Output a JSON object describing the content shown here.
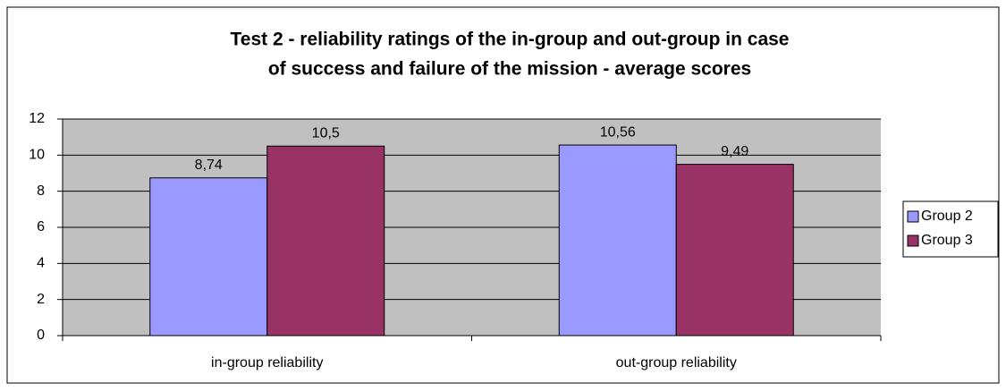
{
  "chart_data": {
    "type": "bar",
    "title": [
      "Test 2 - reliability ratings of the in-group and out-group in case",
      "of success and failure  of the mission - average scores"
    ],
    "categories": [
      "in-group reliability",
      "out-group reliability"
    ],
    "series": [
      {
        "name": "Group 2",
        "color": "#9999ff",
        "values": [
          8.74,
          10.56
        ],
        "value_labels": [
          "8,74",
          "10,56"
        ]
      },
      {
        "name": "Group 3",
        "color": "#993366",
        "values": [
          10.5,
          9.49
        ],
        "value_labels": [
          "10,5",
          "9,49"
        ]
      }
    ],
    "ylim": [
      0,
      12
    ],
    "yticks": [
      0,
      2,
      4,
      6,
      8,
      10,
      12
    ],
    "grid": true,
    "legend": "right"
  }
}
